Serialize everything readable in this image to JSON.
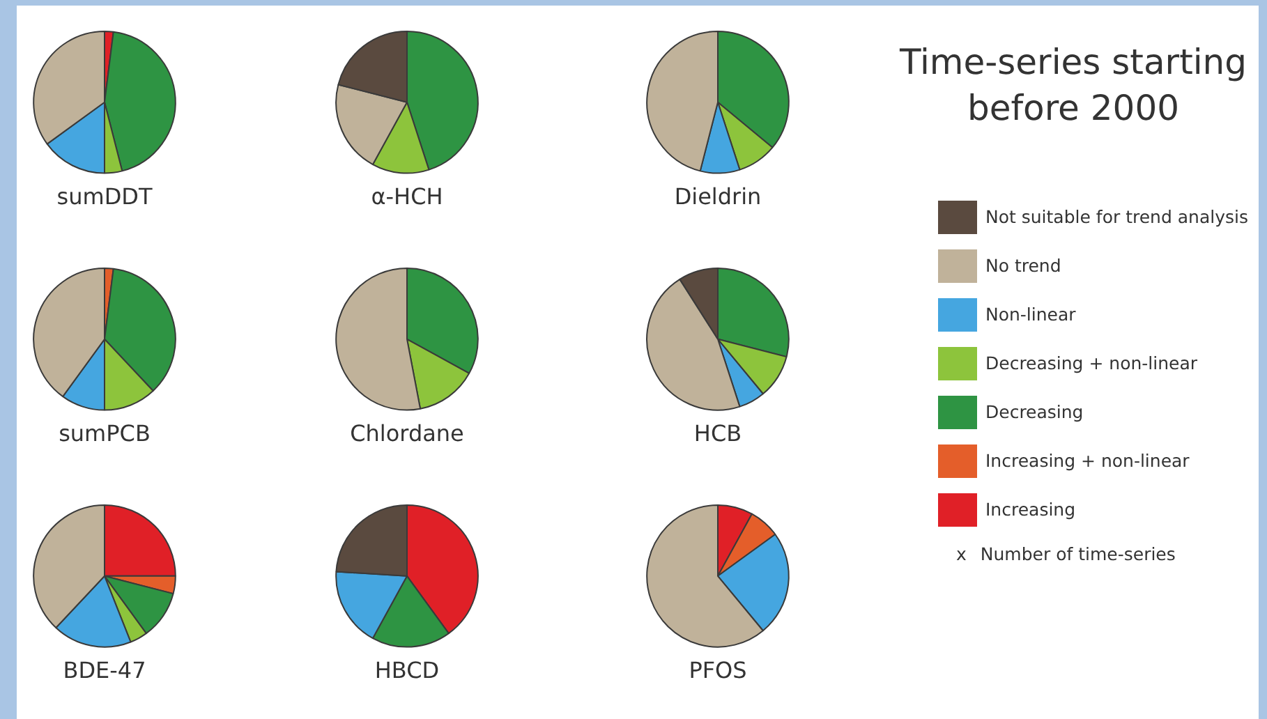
{
  "chart_data": [
    {
      "type": "pie",
      "title": "sumDDT",
      "legend": "right",
      "categories": [
        "Not suitable for trend analysis",
        "No trend",
        "Non-linear",
        "Decreasing + non-linear",
        "Decreasing",
        "Increasing + non-linear",
        "Increasing"
      ],
      "values": [
        0,
        35,
        15,
        4,
        44,
        0,
        2
      ],
      "colors": [
        "#5a4a3f",
        "#c0b29a",
        "#45a6e0",
        "#8dc43c",
        "#2e9443",
        "#e45e2a",
        "#e02027"
      ]
    },
    {
      "type": "pie",
      "title": "α-HCH",
      "categories": [
        null,
        null,
        null,
        null,
        null,
        null,
        null
      ],
      "values": [
        21,
        21,
        0,
        13,
        45,
        0,
        0
      ],
      "colors": [
        "#5a4a3f",
        "#c0b29a",
        "#45a6e0",
        "#8dc43c",
        "#2e9443",
        "#e45e2a",
        "#e02027"
      ]
    },
    {
      "type": "pie",
      "title": "Dieldrin",
      "categories": [
        null,
        null,
        null,
        null,
        null,
        null,
        null
      ],
      "values": [
        0,
        46,
        9,
        9,
        36,
        0,
        0
      ],
      "colors": [
        "#5a4a3f",
        "#c0b29a",
        "#45a6e0",
        "#8dc43c",
        "#2e9443",
        "#e45e2a",
        "#e02027"
      ]
    },
    {
      "type": "pie",
      "title": "sumPCB",
      "categories": [
        null,
        null,
        null,
        null,
        null,
        null,
        null
      ],
      "values": [
        0,
        40,
        10,
        12,
        36,
        2,
        0
      ],
      "colors": [
        "#5a4a3f",
        "#c0b29a",
        "#45a6e0",
        "#8dc43c",
        "#2e9443",
        "#e45e2a",
        "#e02027"
      ]
    },
    {
      "type": "pie",
      "title": "Chlordane",
      "categories": [
        null,
        null,
        null,
        null,
        null,
        null,
        null
      ],
      "values": [
        0,
        53,
        0,
        14,
        33,
        0,
        0
      ],
      "colors": [
        "#5a4a3f",
        "#c0b29a",
        "#45a6e0",
        "#8dc43c",
        "#2e9443",
        "#e45e2a",
        "#e02027"
      ]
    },
    {
      "type": "pie",
      "title": "HCB",
      "categories": [
        null,
        null,
        null,
        null,
        null,
        null,
        null
      ],
      "values": [
        9,
        46,
        6,
        10,
        29,
        0,
        0
      ],
      "colors": [
        "#5a4a3f",
        "#c0b29a",
        "#45a6e0",
        "#8dc43c",
        "#2e9443",
        "#e45e2a",
        "#e02027"
      ]
    },
    {
      "type": "pie",
      "title": "BDE-47",
      "categories": [
        null,
        null,
        null,
        null,
        null,
        null,
        null
      ],
      "values": [
        0,
        38,
        18,
        4,
        11,
        4,
        25
      ],
      "colors": [
        "#5a4a3f",
        "#c0b29a",
        "#45a6e0",
        "#8dc43c",
        "#2e9443",
        "#e45e2a",
        "#e02027"
      ]
    },
    {
      "type": "pie",
      "title": "HBCD",
      "categories": [
        null,
        null,
        null,
        null,
        null,
        null,
        null
      ],
      "values": [
        24,
        0,
        18,
        0,
        18,
        0,
        40
      ],
      "colors": [
        "#5a4a3f",
        "#c0b29a",
        "#45a6e0",
        "#8dc43c",
        "#2e9443",
        "#e45e2a",
        "#e02027"
      ]
    },
    {
      "type": "pie",
      "title": "PFOS",
      "categories": [
        null,
        null,
        null,
        null,
        null,
        null,
        null
      ],
      "values": [
        0,
        61,
        24,
        0,
        0,
        7,
        8
      ],
      "colors": [
        "#5a4a3f",
        "#c0b29a",
        "#45a6e0",
        "#8dc43c",
        "#2e9443",
        "#e45e2a",
        "#e02027"
      ]
    },
    {
      "type": "other",
      "title": "Time-series starting before 2000",
      "annotations": [
        "x",
        "Number of time-series"
      ]
    }
  ]
}
